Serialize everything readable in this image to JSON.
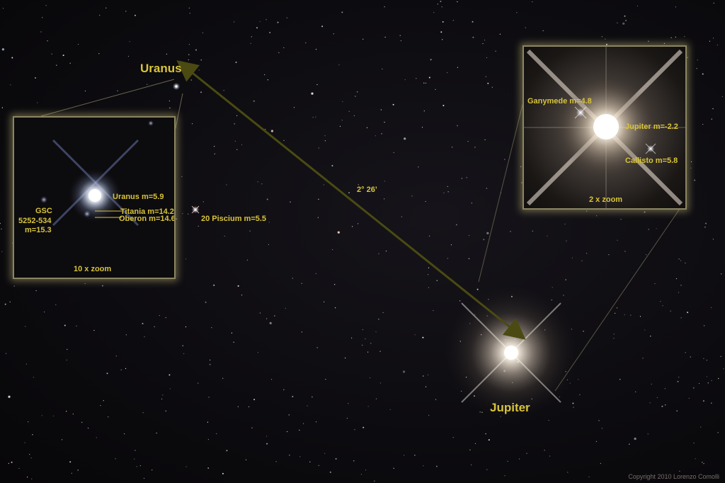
{
  "labels": {
    "uranus_title": "Uranus",
    "jupiter_title": "Jupiter",
    "separation": "2° 26’",
    "star_20psc": "20 Piscium m=5.5",
    "copyright": "Copyright 2010 Lorenzo Comolli"
  },
  "uranus_inset": {
    "zoom": "10 x  zoom",
    "uranus": "Uranus m=5.9",
    "titania": "Titania m=14.2",
    "oberon": "Oberon m=14.6",
    "gsc_line1": "GSC",
    "gsc_line2": "5252-534",
    "gsc_line3": "m=15.3"
  },
  "jupiter_inset": {
    "zoom": "2 x  zoom",
    "ganymede": "Ganymede m=4.8",
    "jupiter": "Jupiter m=-2.2",
    "callisto": "Callisto m=5.8"
  },
  "colors": {
    "label": "#d9c43a",
    "arrow": "#4a4a12",
    "frame": "#8a8560"
  }
}
